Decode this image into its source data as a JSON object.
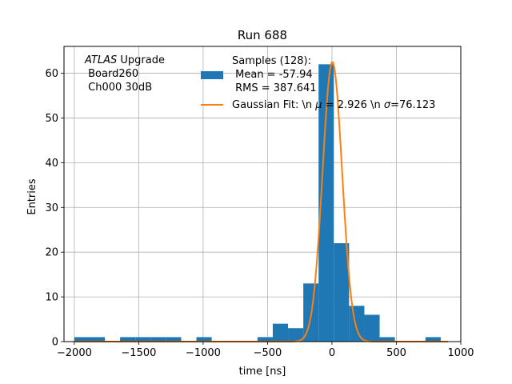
{
  "chart_data": {
    "type": "bar",
    "title": "Run 688",
    "xlabel": "time [ns]",
    "ylabel": "Entries",
    "xlim": [
      -2080,
      1000
    ],
    "ylim": [
      0,
      66
    ],
    "xticks": [
      -2000,
      -1500,
      -1000,
      -500,
      0,
      500,
      1000
    ],
    "yticks": [
      0,
      10,
      20,
      30,
      40,
      50,
      60
    ],
    "grid": true,
    "annotation": {
      "italic": "ATLAS",
      "rest": " Upgrade",
      "line2": " Board260",
      "line3": " Ch000 30dB"
    },
    "histogram": {
      "name": "Samples (128):",
      "name_line2": " Mean = -57.94",
      "name_line3": " RMS = 387.641",
      "color": "#1f77b4",
      "bin_width": 118.5,
      "bins": [
        {
          "x0": -2000,
          "count": 1
        },
        {
          "x0": -1881.5,
          "count": 1
        },
        {
          "x0": -1644.5,
          "count": 1
        },
        {
          "x0": -1526,
          "count": 1
        },
        {
          "x0": -1407.5,
          "count": 1
        },
        {
          "x0": -1289,
          "count": 1
        },
        {
          "x0": -1052,
          "count": 1
        },
        {
          "x0": -578,
          "count": 1
        },
        {
          "x0": -459.5,
          "count": 4
        },
        {
          "x0": -341,
          "count": 3
        },
        {
          "x0": -222.5,
          "count": 13
        },
        {
          "x0": -104,
          "count": 62
        },
        {
          "x0": 14.5,
          "count": 22
        },
        {
          "x0": 133,
          "count": 8
        },
        {
          "x0": 251.5,
          "count": 6
        },
        {
          "x0": 370,
          "count": 1
        },
        {
          "x0": 488.5,
          "count": 0
        },
        {
          "x0": 725.5,
          "count": 1
        }
      ]
    },
    "fit": {
      "name": "Gaussian Fit: \\n $\\mu$ = 2.926 \\n $\\sigma$=76.123",
      "legend_prefix": "Gaussian Fit: \\n ",
      "legend_mu": "μ",
      "legend_mid": " = 2.926 \\n ",
      "legend_sigma": "σ",
      "legend_suffix": "=76.123",
      "color": "#ff7f0e",
      "mu": 2.926,
      "sigma": 76.123,
      "amplitude": 62.5,
      "x_range": [
        -2000,
        900
      ]
    },
    "legend_position": "top-center"
  }
}
